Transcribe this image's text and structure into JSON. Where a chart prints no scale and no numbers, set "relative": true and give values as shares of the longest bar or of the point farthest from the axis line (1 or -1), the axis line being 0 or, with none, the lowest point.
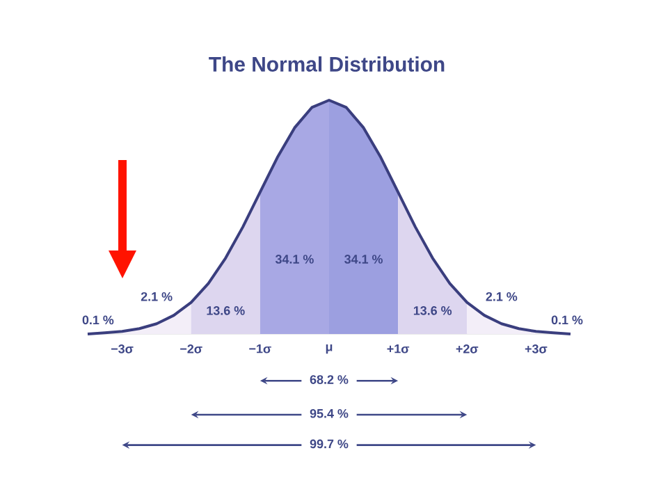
{
  "chart_data": {
    "type": "area",
    "title": "The Normal Distribution",
    "relative": true,
    "xlim": [
      -3.5,
      3.5
    ],
    "xticks": [
      {
        "value": -3,
        "label": "−3σ"
      },
      {
        "value": -2,
        "label": "−2σ"
      },
      {
        "value": -1,
        "label": "−1σ"
      },
      {
        "value": 0,
        "label": "μ"
      },
      {
        "value": 1,
        "label": "+1σ"
      },
      {
        "value": 2,
        "label": "+2σ"
      },
      {
        "value": 3,
        "label": "+3σ"
      }
    ],
    "series": [
      {
        "color": "#f3eef8",
        "x": [
          -3,
          -2.75,
          -2.5,
          -2.25,
          -2
        ],
        "values": [
          0.011,
          0.023,
          0.044,
          0.08,
          0.135
        ]
      },
      {
        "color": "#ddd6ef",
        "x": [
          -2,
          -1.75,
          -1.5,
          -1.25,
          -1
        ],
        "values": [
          0.135,
          0.216,
          0.325,
          0.458,
          0.607
        ]
      },
      {
        "color": "#a8a8e4",
        "x": [
          -1,
          -0.75,
          -0.5,
          -0.25,
          0
        ],
        "values": [
          0.607,
          0.755,
          0.882,
          0.969,
          1
        ]
      },
      {
        "color": "#9c9fe0",
        "x": [
          0,
          0.25,
          0.5,
          0.75,
          1
        ],
        "values": [
          1,
          0.969,
          0.882,
          0.755,
          0.607
        ]
      },
      {
        "color": "#ddd6ef",
        "x": [
          1,
          1.25,
          1.5,
          1.75,
          2
        ],
        "values": [
          0.607,
          0.458,
          0.325,
          0.216,
          0.135
        ]
      },
      {
        "color": "#f3eef8",
        "x": [
          2,
          2.25,
          2.5,
          2.75,
          3
        ],
        "values": [
          0.135,
          0.08,
          0.044,
          0.023,
          0.011
        ]
      },
      {
        "type": "line",
        "color": "#3a3e7e",
        "x": [
          -3.5,
          -3.25,
          -3,
          -2.75,
          -2.5,
          -2.25,
          -2,
          -1.75,
          -1.5,
          -1.25,
          -1,
          -0.75,
          -0.5,
          -0.25,
          0,
          0.25,
          0.5,
          0.75,
          1,
          1.25,
          1.5,
          1.75,
          2,
          2.25,
          2.5,
          2.75,
          3,
          3.25,
          3.5
        ],
        "values": [
          0,
          0.005,
          0.011,
          0.023,
          0.044,
          0.08,
          0.135,
          0.216,
          0.325,
          0.458,
          0.607,
          0.755,
          0.882,
          0.969,
          1,
          0.969,
          0.882,
          0.755,
          0.607,
          0.458,
          0.325,
          0.216,
          0.135,
          0.08,
          0.044,
          0.023,
          0.011,
          0.005,
          0
        ]
      }
    ],
    "annotations": [
      "0.1 %",
      "2.1 %",
      "13.6 %",
      "34.1 %",
      "34.1 %",
      "13.6 %",
      "2.1 %",
      "0.1 %",
      "68.2 %",
      "95.4 %",
      "99.7 %"
    ]
  }
}
